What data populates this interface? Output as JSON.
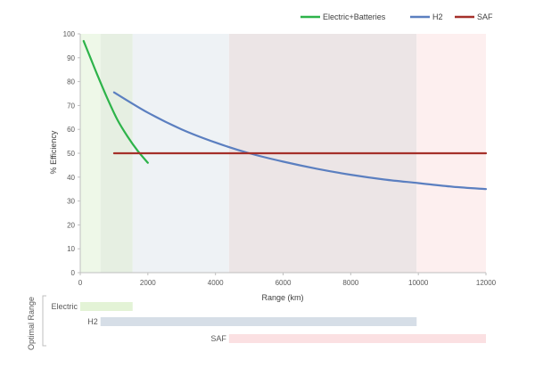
{
  "chart_data": {
    "type": "line",
    "xlabel": "Range (km)",
    "ylabel": "% Efficiency",
    "xlim": [
      0,
      12000
    ],
    "ylim": [
      0,
      100
    ],
    "x_ticks": [
      0,
      2000,
      4000,
      6000,
      8000,
      10000,
      12000
    ],
    "y_ticks": [
      0,
      10,
      20,
      30,
      40,
      50,
      60,
      70,
      80,
      90,
      100
    ],
    "grid": false,
    "legend_position": "top-right",
    "series": [
      {
        "name": "Electric+Batteries",
        "color": "#2db34a",
        "points": [
          [
            100,
            97
          ],
          [
            300,
            90
          ],
          [
            500,
            83
          ],
          [
            800,
            73
          ],
          [
            1100,
            64
          ],
          [
            1400,
            57
          ],
          [
            1700,
            51
          ],
          [
            2000,
            46
          ]
        ]
      },
      {
        "name": "H2",
        "color": "#5b7fc0",
        "points": [
          [
            1000,
            75.5
          ],
          [
            2000,
            67
          ],
          [
            3000,
            60
          ],
          [
            4000,
            54.5
          ],
          [
            5000,
            50
          ],
          [
            6000,
            46.5
          ],
          [
            7000,
            43.5
          ],
          [
            8000,
            41
          ],
          [
            9000,
            39
          ],
          [
            10000,
            37.5
          ],
          [
            11000,
            36
          ],
          [
            12000,
            35
          ]
        ]
      },
      {
        "name": "SAF",
        "color": "#a5302a",
        "points": [
          [
            1000,
            50
          ],
          [
            12000,
            50
          ]
        ]
      }
    ],
    "background_bands": [
      {
        "from": 0,
        "to": 600,
        "color": "#eef8e8"
      },
      {
        "from": 600,
        "to": 1550,
        "color": "#e6efe2"
      },
      {
        "from": 1550,
        "to": 4400,
        "color": "#eef2f5"
      },
      {
        "from": 4400,
        "to": 9950,
        "color": "#ece5e6"
      },
      {
        "from": 9950,
        "to": 12000,
        "color": "#fdefef"
      }
    ],
    "optimal_range": {
      "title": "Optimal Range",
      "bars": [
        {
          "label": "Electric",
          "from": 0,
          "to": 1550,
          "color": "#e3f3d6"
        },
        {
          "label": "H2",
          "from": 600,
          "to": 9950,
          "color": "#d6dee7"
        },
        {
          "label": "SAF",
          "from": 4400,
          "to": 12000,
          "color": "#fbe0e2"
        }
      ]
    }
  }
}
